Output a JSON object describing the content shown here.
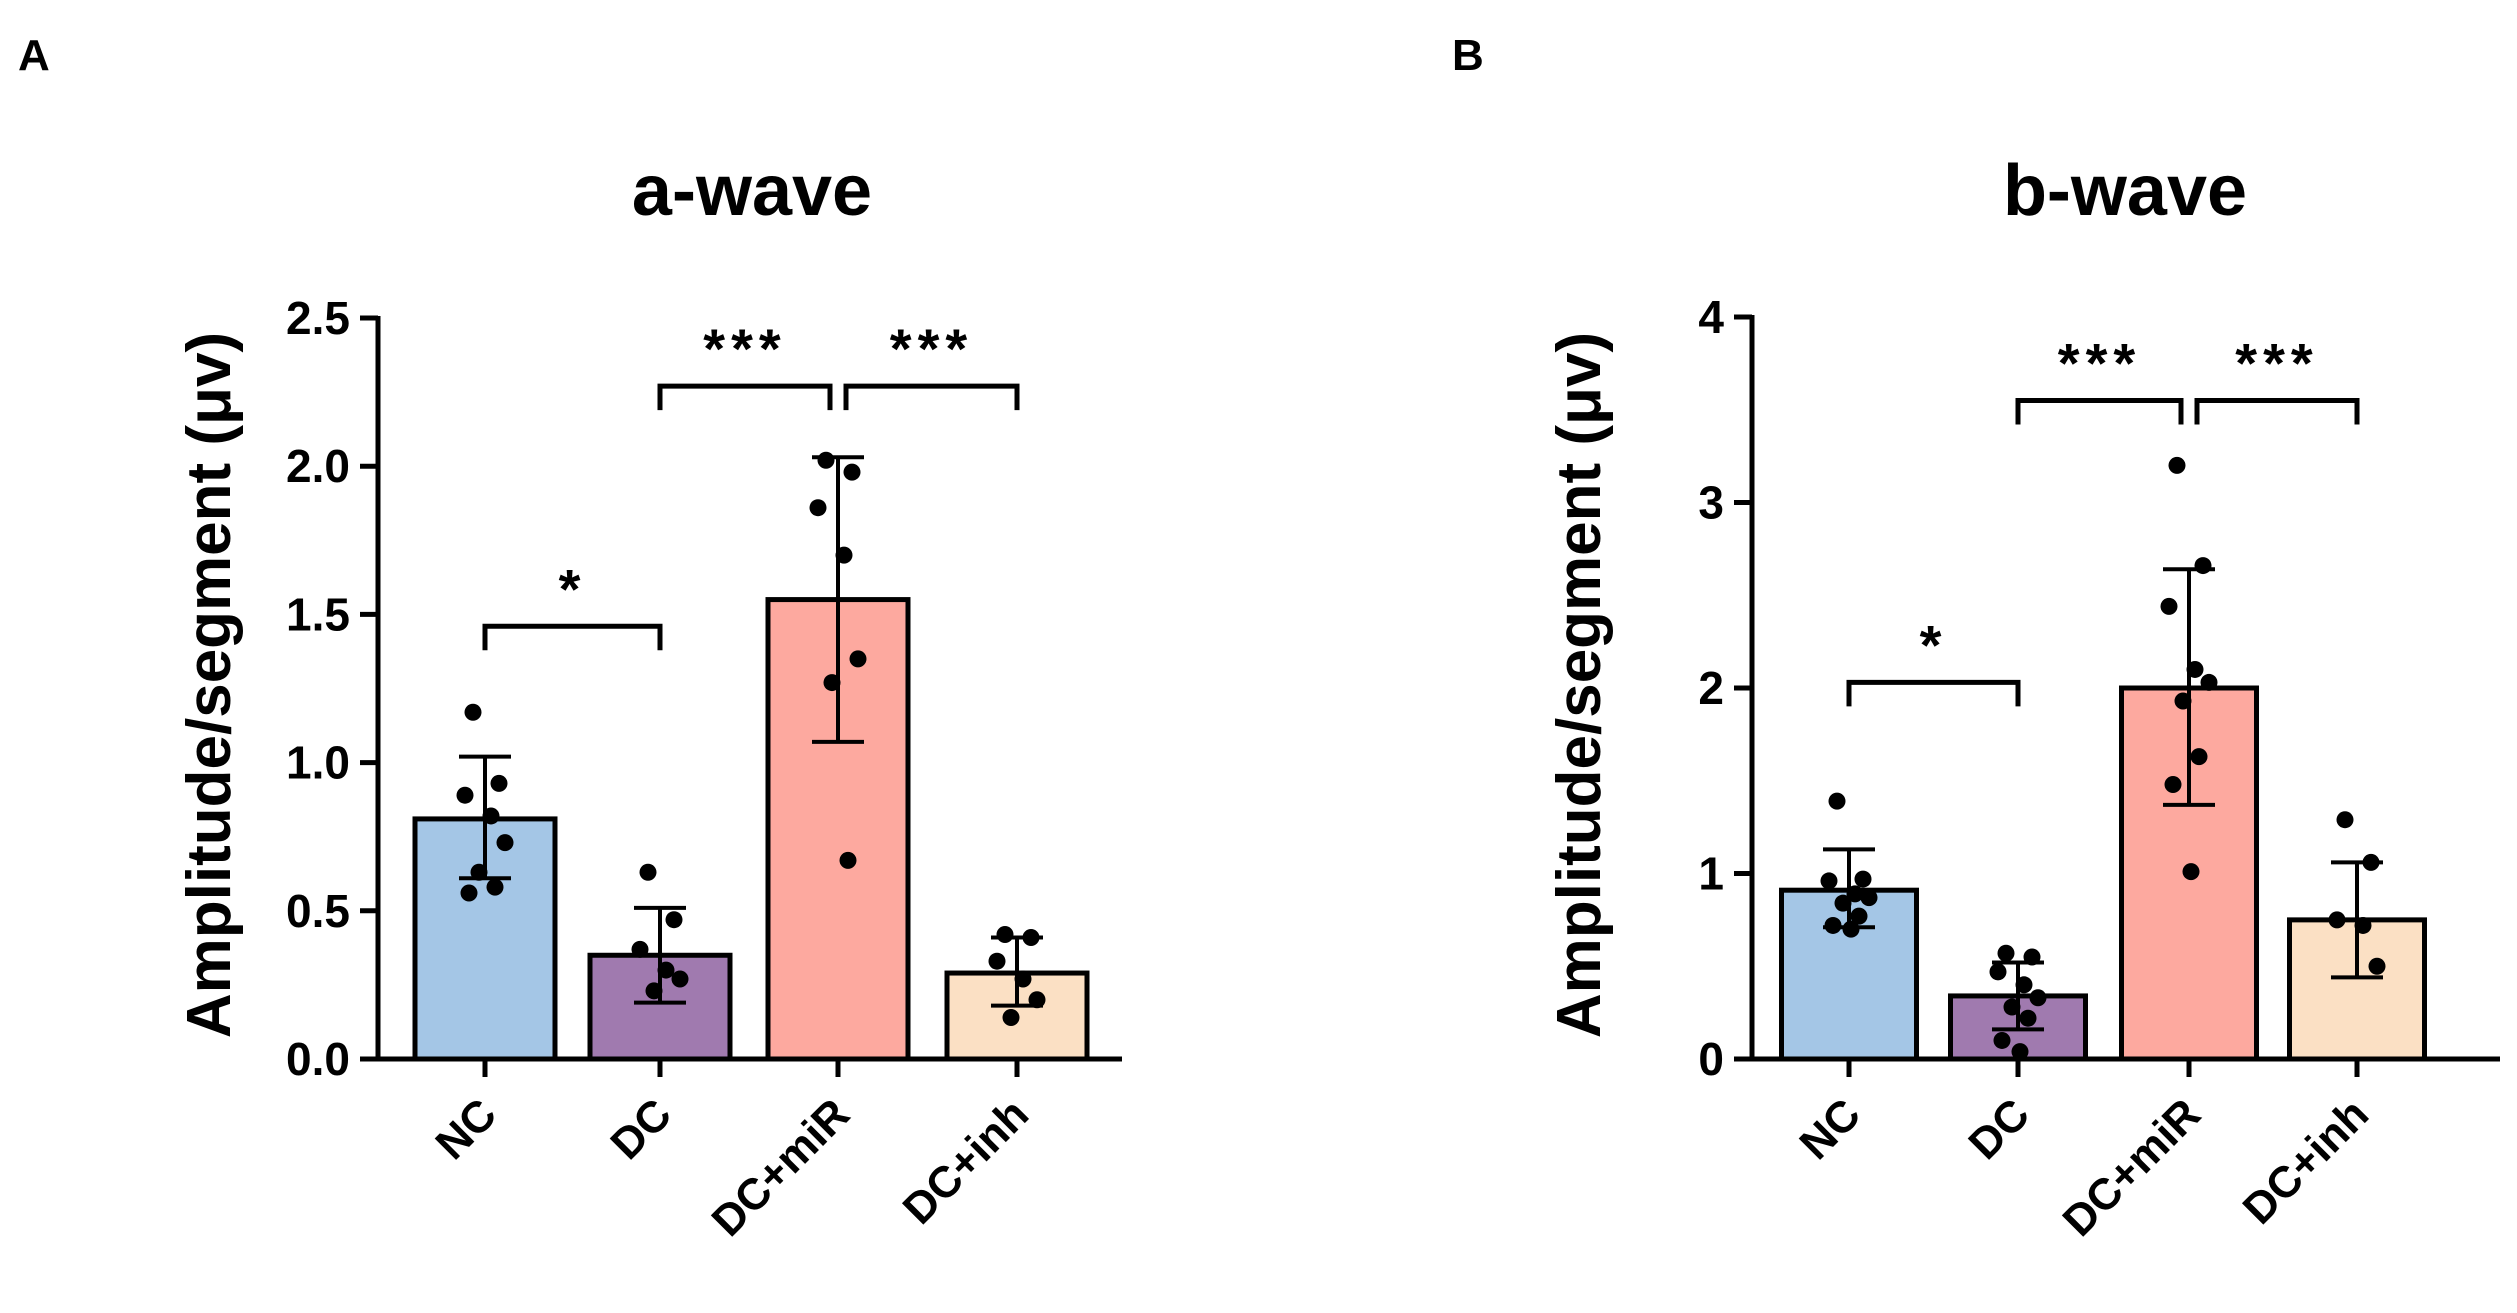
{
  "chart_data": [
    {
      "panel": "A",
      "type": "bar",
      "title": "a-wave",
      "xlabel": "",
      "ylabel": "Amplitude/segment (μv)",
      "ylim": [
        0,
        2.5
      ],
      "yticks": [
        0.0,
        0.5,
        1.0,
        1.5,
        2.0,
        2.5
      ],
      "ytick_labels": [
        "0.0",
        "0.5",
        "1.0",
        "1.5",
        "2.0",
        "2.5"
      ],
      "categories": [
        "NC",
        "DC",
        "DC+miR",
        "DC+inh"
      ],
      "colors": [
        "#a4c6e6",
        "#a07aaf",
        "#fda99f",
        "#fbe0c4"
      ],
      "values": [
        0.81,
        0.35,
        1.55,
        0.29
      ],
      "error_low": [
        0.61,
        0.19,
        1.07,
        0.18
      ],
      "error_high": [
        1.02,
        0.51,
        2.03,
        0.41
      ],
      "points": [
        [
          1.17,
          0.93,
          0.89,
          0.82,
          0.73,
          0.63,
          0.58,
          0.56
        ],
        [
          0.63,
          0.47,
          0.37,
          0.3,
          0.27,
          0.23
        ],
        [
          2.02,
          1.98,
          1.86,
          1.7,
          1.35,
          1.27,
          0.67
        ],
        [
          0.42,
          0.41,
          0.33,
          0.27,
          0.2,
          0.14
        ]
      ],
      "significance": [
        {
          "from": 0,
          "to": 1,
          "label": "*",
          "y": 1.46
        },
        {
          "from": 1,
          "to": 2,
          "label": "***",
          "y": 2.27
        },
        {
          "from": 2,
          "to": 3,
          "label": "***",
          "y": 2.27
        }
      ]
    },
    {
      "panel": "B",
      "type": "bar",
      "title": "b-wave",
      "xlabel": "",
      "ylabel": "Amplitude/segment (μv)",
      "ylim": [
        0,
        4
      ],
      "yticks": [
        0,
        1,
        2,
        3,
        4
      ],
      "ytick_labels": [
        "0",
        "1",
        "2",
        "3",
        "4"
      ],
      "categories": [
        "NC",
        "DC",
        "DC+miR",
        "DC+inh"
      ],
      "colors": [
        "#a4c6e6",
        "#a07aaf",
        "#fda99f",
        "#fbe0c4"
      ],
      "values": [
        0.91,
        0.34,
        2.0,
        0.75
      ],
      "error_low": [
        0.71,
        0.16,
        1.37,
        0.44
      ],
      "error_high": [
        1.13,
        0.52,
        2.64,
        1.06
      ],
      "points": [
        [
          1.39,
          0.97,
          0.96,
          0.89,
          0.87,
          0.84,
          0.77,
          0.72,
          0.7
        ],
        [
          0.57,
          0.55,
          0.47,
          0.4,
          0.33,
          0.28,
          0.22,
          0.1,
          0.04
        ],
        [
          3.2,
          2.66,
          2.44,
          2.1,
          2.03,
          1.93,
          1.63,
          1.48,
          1.01
        ],
        [
          1.29,
          1.06,
          0.75,
          0.72,
          0.5
        ]
      ],
      "significance": [
        {
          "from": 0,
          "to": 1,
          "label": "*",
          "y": 2.03
        },
        {
          "from": 1,
          "to": 2,
          "label": "***",
          "y": 3.55
        },
        {
          "from": 2,
          "to": 3,
          "label": "***",
          "y": 3.55
        }
      ]
    }
  ]
}
